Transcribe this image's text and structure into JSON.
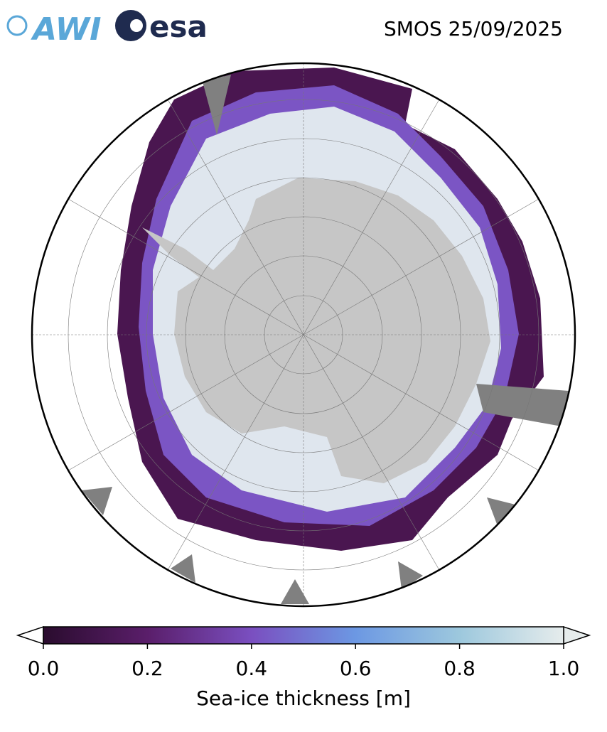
{
  "header": {
    "logos": [
      "AWI",
      "esa"
    ],
    "title": "SMOS 25/09/2025"
  },
  "colorbar": {
    "label": "Sea-ice thickness [m]",
    "lim": [
      0,
      1
    ],
    "ticks": [
      {
        "value": 0,
        "label": "0.0"
      },
      {
        "value": 0.2,
        "label": "0.2"
      },
      {
        "value": 0.4,
        "label": "0.4"
      },
      {
        "value": 0.6,
        "label": "0.6"
      },
      {
        "value": 0.8,
        "label": "0.8"
      },
      {
        "value": 1,
        "label": "1.0"
      }
    ]
  }
}
